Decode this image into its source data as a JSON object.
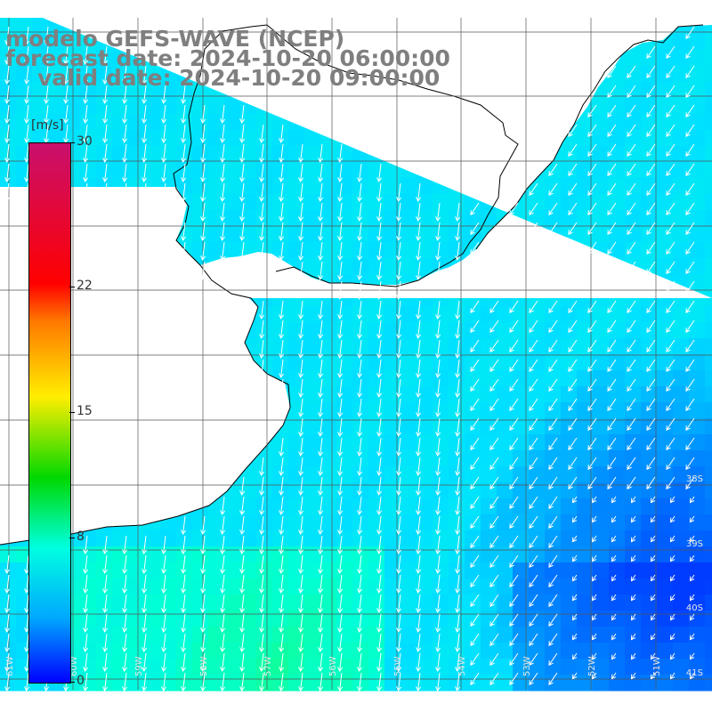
{
  "title": {
    "model": "modelo GEFS-WAVE (NCEP)",
    "forecast": "forecast date: 2024-10-20 06:00:00",
    "valid": "valid date: 2024-10-20 09:00:00"
  },
  "colorbar": {
    "units": "[m/s]",
    "ticks": [
      {
        "label": "30",
        "value": 30
      },
      {
        "label": "22",
        "value": 22
      },
      {
        "label": "15",
        "value": 15
      },
      {
        "label": "8",
        "value": 8
      },
      {
        "label": "0",
        "value": 0
      }
    ],
    "colors": [
      "#0000ff",
      "#00a8ff",
      "#00ffe0",
      "#00d800",
      "#ffee00",
      "#ff7800",
      "#ff0000",
      "#c8106e"
    ]
  },
  "grid": {
    "lat_labels": [
      "38S",
      "39S",
      "40S",
      "41S"
    ],
    "lon_labels": [
      "61W",
      "60W",
      "59W",
      "58W",
      "57W",
      "56W",
      "55W",
      "54W",
      "53W",
      "52W",
      "51W"
    ]
  },
  "colors": {
    "land": "#ffffff",
    "coast": "#000000",
    "gridline": "#555555",
    "arrow": "#ffffff"
  }
}
